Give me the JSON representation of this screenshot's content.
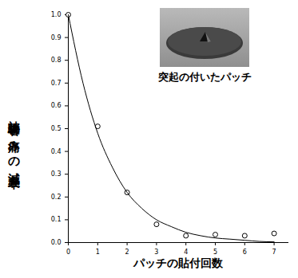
{
  "chart_data": {
    "type": "scatter",
    "x_label": "パッチの貼付回数",
    "y_label": "被験者の痛みの減衰率",
    "annotations": [
      "突起の付いたパッチ"
    ],
    "series": [
      {
        "type": "scatter",
        "marker": "circle",
        "color": "#000000",
        "x": [
          0,
          1,
          2,
          3,
          4,
          5,
          6,
          7
        ],
        "values": [
          1.0,
          0.51,
          0.22,
          0.08,
          0.03,
          0.035,
          0.03,
          0.04
        ]
      },
      {
        "type": "line",
        "line_style": "solid",
        "color": "#000000",
        "x": [
          0,
          0.5,
          1,
          1.5,
          2,
          2.5,
          3,
          3.5,
          4,
          4.5,
          5,
          5.5,
          6,
          6.5,
          7
        ],
        "values": [
          1.0,
          0.7,
          0.48,
          0.33,
          0.22,
          0.15,
          0.1,
          0.07,
          0.045,
          0.03,
          0.02,
          0.015,
          0.01,
          0.005,
          0.003
        ]
      }
    ],
    "xlim": [
      0,
      7.5
    ],
    "xticks": [
      0,
      1,
      2,
      3,
      4,
      5,
      6,
      7
    ],
    "ylim": [
      0,
      1.0
    ],
    "yticks": [
      {
        "value": 0,
        "label": "0.0"
      },
      {
        "value": 0.1,
        "label": "0.1"
      },
      {
        "value": 0.2,
        "label": "0.2"
      },
      {
        "value": 0.3,
        "label": "0.3"
      },
      {
        "value": 0.4,
        "label": "0.4"
      },
      {
        "value": 0.5,
        "label": "0.5"
      },
      {
        "value": 0.6,
        "label": "0.6"
      },
      {
        "value": 0.7,
        "label": "0.7"
      },
      {
        "value": 0.8,
        "label": "0.8"
      },
      {
        "value": 0.9,
        "label": "0.9"
      },
      {
        "value": 1.0,
        "label": "1.0"
      }
    ],
    "grid": false
  }
}
